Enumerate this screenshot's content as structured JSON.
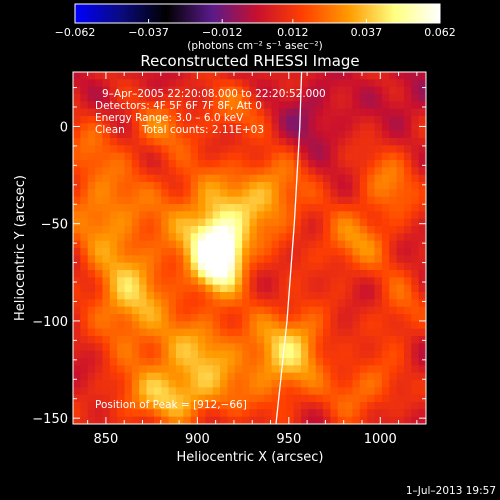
{
  "chart_data": {
    "type": "heatmap",
    "title": "Reconstructed RHESSI Image",
    "xlabel": "Heliocentric X (arcsec)",
    "ylabel": "Heliocentric Y (arcsec)",
    "xlim": [
      832,
      1025
    ],
    "ylim": [
      -153,
      28
    ],
    "x_ticks": [
      850,
      900,
      950,
      1000
    ],
    "x_tick_labels": [
      "850",
      "900",
      "950",
      "1000"
    ],
    "y_ticks": [
      0,
      -50,
      -100,
      -150
    ],
    "y_tick_labels": [
      "0",
      "−50",
      "−100",
      "−150"
    ],
    "colorbar": {
      "range": [
        -0.062,
        0.062
      ],
      "ticks": [
        -0.062,
        -0.037,
        -0.012,
        0.012,
        0.037,
        0.062
      ],
      "tick_labels": [
        "−0.062",
        "−0.037",
        "−0.012",
        "0.012",
        "0.037",
        "0.062"
      ],
      "unit_label": "(photons cm⁻² s⁻¹ asec⁻²)",
      "colormap": [
        "#0000ff",
        "#0a0a80",
        "#000000",
        "#5a1a8a",
        "#c8102e",
        "#ff4000",
        "#ff9a00",
        "#ffff80",
        "#ffffff"
      ]
    },
    "annotations": [
      "9–Apr–2005 22:20:08.000 to 22:20:52.000",
      "Detectors: 4F 5F 6F 7F 8F, Att 0",
      "Energy Range: 3.0 – 6.0 keV",
      "Clean",
      "Total counts: 2.11E+03"
    ],
    "peak_label": "Position of Peak = [912,−66]",
    "peak": [
      912,
      -66
    ],
    "footer_date": "1–Jul–2013 19:57",
    "limb_points": [
      [
        957,
        28
      ],
      [
        956,
        0
      ],
      [
        953,
        -50
      ],
      [
        949,
        -100
      ],
      [
        943,
        -153
      ]
    ],
    "sources": [
      {
        "x": 912,
        "y": -66,
        "amp": 0.062,
        "sx": 9,
        "sy": 12
      },
      {
        "x": 905,
        "y": -50,
        "amp": 0.028,
        "sx": 20,
        "sy": 22
      },
      {
        "x": 862,
        "y": -88,
        "amp": 0.03,
        "sx": 14,
        "sy": 16
      },
      {
        "x": 850,
        "y": -45,
        "amp": 0.025,
        "sx": 16,
        "sy": 20
      },
      {
        "x": 900,
        "y": -118,
        "amp": 0.028,
        "sx": 24,
        "sy": 16
      },
      {
        "x": 885,
        "y": -140,
        "amp": 0.024,
        "sx": 22,
        "sy": 10
      },
      {
        "x": 940,
        "y": -35,
        "amp": 0.026,
        "sx": 14,
        "sy": 14
      },
      {
        "x": 945,
        "y": -120,
        "amp": 0.024,
        "sx": 12,
        "sy": 18
      },
      {
        "x": 985,
        "y": -60,
        "amp": 0.022,
        "sx": 14,
        "sy": 12
      },
      {
        "x": 1005,
        "y": -30,
        "amp": 0.02,
        "sx": 12,
        "sy": 14
      },
      {
        "x": 990,
        "y": -135,
        "amp": 0.02,
        "sx": 14,
        "sy": 12
      },
      {
        "x": 960,
        "y": -110,
        "amp": 0.018,
        "sx": 10,
        "sy": 14
      },
      {
        "x": 880,
        "y": 0,
        "amp": 0.018,
        "sx": 12,
        "sy": 10
      },
      {
        "x": 920,
        "y": 10,
        "amp": 0.015,
        "sx": 14,
        "sy": 10
      },
      {
        "x": 840,
        "y": -10,
        "amp": 0.012,
        "sx": 10,
        "sy": 12
      },
      {
        "x": 1010,
        "y": -95,
        "amp": 0.016,
        "sx": 10,
        "sy": 14
      },
      {
        "x": 960,
        "y": 5,
        "amp": -0.01,
        "sx": 12,
        "sy": 12
      },
      {
        "x": 1015,
        "y": 15,
        "amp": -0.008,
        "sx": 10,
        "sy": 10
      }
    ],
    "background": 0.004
  }
}
